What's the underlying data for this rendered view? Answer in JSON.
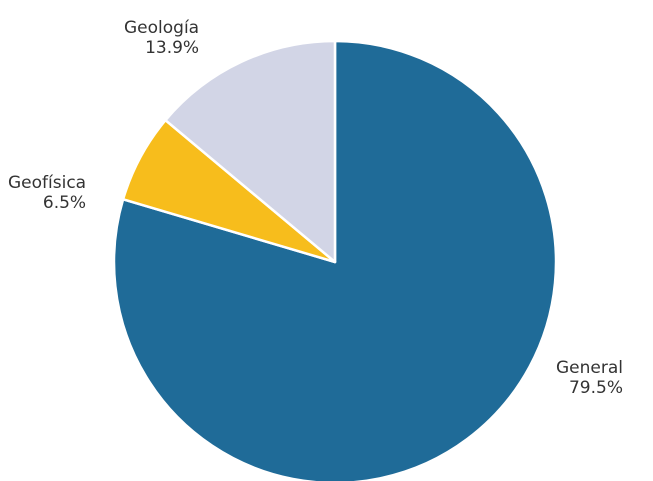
{
  "chart_data": {
    "type": "pie",
    "title": "",
    "start_angle_deg": 0,
    "direction": "clockwise",
    "legend": "none",
    "slices": [
      {
        "name": "General",
        "value": 79.5,
        "label": "79.5%",
        "color": "#1f6b98"
      },
      {
        "name": "Geofísica",
        "value": 6.5,
        "label": "6.5%",
        "color": "#f7bd1c"
      },
      {
        "name": "Geología",
        "value": 13.9,
        "label": "13.9%",
        "color": "#d2d5e6"
      }
    ]
  }
}
